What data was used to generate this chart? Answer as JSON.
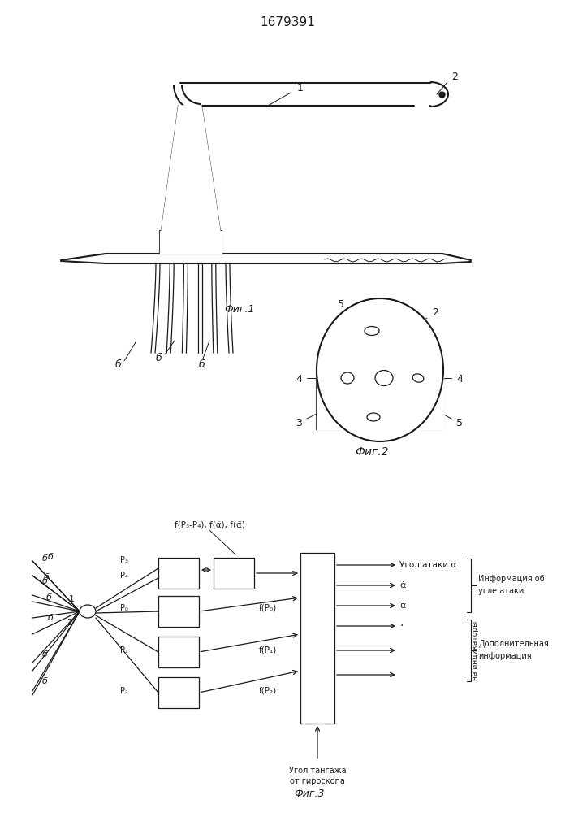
{
  "title": "1679391",
  "bg_color": "#ffffff",
  "line_color": "#1a1a1a",
  "fig1_label": "Фиг.1",
  "fig2_label": "Фиг.2",
  "fig3_label": "Фиг.3",
  "info_ataki": "Информация об",
  "info_ataki2": "угле атаки",
  "dop_info": "Дополнительная",
  "dop_info2": "информация",
  "ugol_ataki": "Угол атаки α",
  "ugol_tang": "Угол тангажа",
  "ot_giro": "от гироскопа",
  "na_indik": "на индикаторы",
  "fp3p4": "f(P₃-P₄), f(α̇), f(α̈)",
  "fp0": "f(P₀)",
  "fp1": "f(P₁)",
  "fp2": "f(P₂)"
}
